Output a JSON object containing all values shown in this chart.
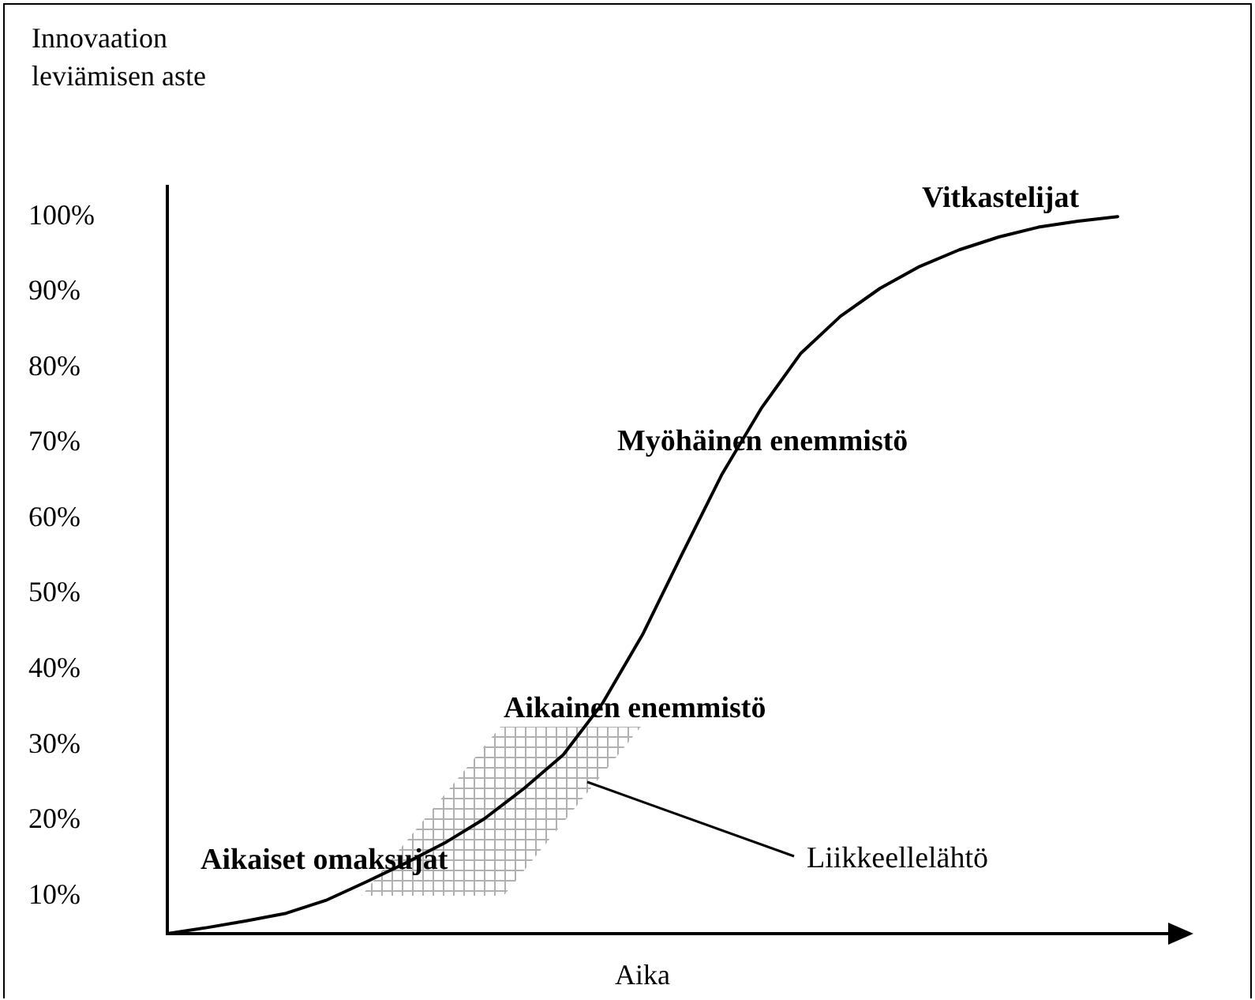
{
  "chart_data": {
    "type": "line",
    "xlabel": "Aika",
    "ylabel": "Innovaation leviämisen aste",
    "categories": [
      null,
      null,
      null,
      null,
      null,
      null,
      null,
      null,
      null,
      null,
      null,
      null,
      null,
      null,
      null,
      null,
      null,
      null,
      null,
      null,
      null,
      null,
      null,
      null,
      null
    ],
    "series": [
      {
        "color": "#000000",
        "values": [
          5.0,
          5.8,
          6.7,
          7.7,
          9.4,
          11.8,
          14.3,
          17.0,
          20.2,
          24.2,
          28.7,
          35.6,
          44.6,
          55.3,
          65.8,
          74.6,
          81.9,
          86.8,
          90.5,
          93.4,
          95.6,
          97.3,
          98.6,
          99.4,
          100
        ]
      }
    ],
    "ylim": [
      5,
      104
    ],
    "yticks": [
      {
        "value": 10,
        "label": "10%"
      },
      {
        "value": 20,
        "label": "20%"
      },
      {
        "value": 30,
        "label": "30%"
      },
      {
        "value": 40,
        "label": "40%"
      },
      {
        "value": 50,
        "label": "50%"
      },
      {
        "value": 60,
        "label": "60%"
      },
      {
        "value": 70,
        "label": "70%"
      },
      {
        "value": 80,
        "label": "80%"
      },
      {
        "value": 90,
        "label": "90%"
      },
      {
        "value": 100,
        "label": "100%"
      }
    ],
    "tick_labels": "y",
    "grid": false,
    "legend": false,
    "marker": "none",
    "line_style": "solid",
    "annotations": [
      "Aikaiset omaksujat",
      "Aikainen enemmistö",
      "Myöhäinen enemmistö",
      "Vitkastelijat",
      "Liikkeellelähtö"
    ]
  }
}
